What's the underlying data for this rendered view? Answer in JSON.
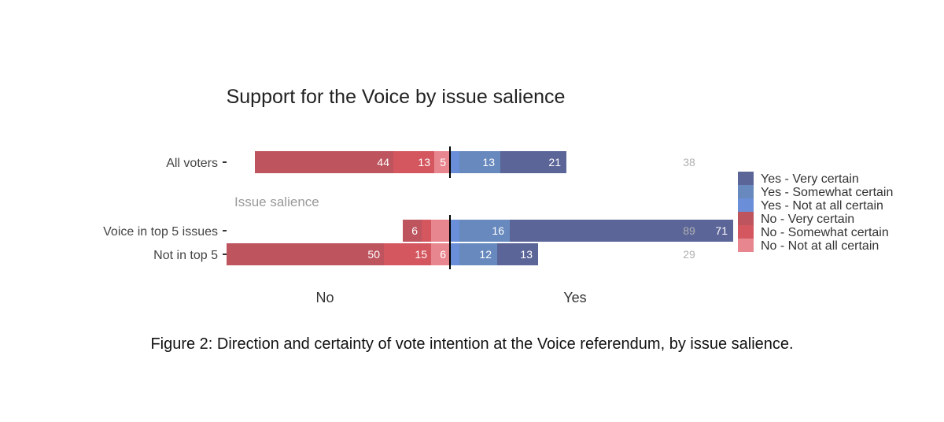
{
  "chart_data": {
    "type": "bar",
    "orientation": "horizontal-diverging",
    "title": "Support for the Voice by issue salience",
    "group_label": "Issue salience",
    "axis_labels": {
      "left": "No",
      "right": "Yes"
    },
    "categories": [
      "All voters",
      "Voice in top 5 issues",
      "Not in top 5"
    ],
    "series": [
      {
        "name": "No - Not at all certain",
        "side": "no",
        "color": "#e8868f",
        "values": [
          5,
          6,
          6
        ]
      },
      {
        "name": "No - Somewhat certain",
        "side": "no",
        "color": "#d4575f",
        "values": [
          13,
          3,
          15
        ]
      },
      {
        "name": "No - Very certain",
        "side": "no",
        "color": "#bd545e",
        "values": [
          44,
          6,
          50
        ]
      },
      {
        "name": "Yes - Not at all certain",
        "side": "yes",
        "color": "#6b8ed8",
        "values": [
          3,
          3,
          3
        ]
      },
      {
        "name": "Yes - Somewhat certain",
        "side": "yes",
        "color": "#6789be",
        "values": [
          13,
          16,
          12
        ]
      },
      {
        "name": "Yes - Very certain",
        "side": "yes",
        "color": "#5b6598",
        "values": [
          21,
          71,
          13
        ]
      }
    ],
    "value_labels": [
      {
        "no_very": "44",
        "no_some": "13",
        "no_not": "5",
        "yes_not": "",
        "yes_some": "13",
        "yes_very": "21"
      },
      {
        "no_very": "6",
        "no_some": "",
        "no_not": "",
        "yes_not": "",
        "yes_some": "16",
        "yes_very": "71"
      },
      {
        "no_very": "50",
        "no_some": "15",
        "no_not": "6",
        "yes_not": "",
        "yes_some": "12",
        "yes_very": "13"
      }
    ],
    "totals_yes": [
      "38",
      "89",
      "29"
    ],
    "legend_order": [
      "Yes - Very certain",
      "Yes - Somewhat certain",
      "Yes - Not at all certain",
      "No - Very certain",
      "No - Somewhat certain",
      "No - Not at all certain"
    ],
    "legend_position": "right"
  },
  "caption": "Figure 2: Direction and certainty of vote intention at the Voice referendum, by issue salience."
}
